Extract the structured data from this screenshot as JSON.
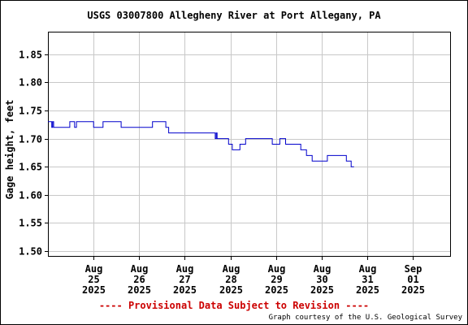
{
  "chart_data": {
    "type": "line",
    "title": "USGS 03007800 Allegheny River at Port Allegany, PA",
    "ylabel": "Gage height, feet",
    "xlabel": "",
    "ylim": [
      1.49,
      1.89
    ],
    "yticks": [
      1.5,
      1.55,
      1.6,
      1.65,
      1.7,
      1.75,
      1.8,
      1.85
    ],
    "ytick_labels": [
      "1.50",
      "1.55",
      "1.60",
      "1.65",
      "1.70",
      "1.75",
      "1.80",
      "1.85"
    ],
    "xlim": [
      "2025-08-24 00:00",
      "2025-09-01 20:00"
    ],
    "xticks": [
      {
        "date": "2025-08-25",
        "lines": [
          "Aug",
          "25",
          "2025"
        ]
      },
      {
        "date": "2025-08-26",
        "lines": [
          "Aug",
          "26",
          "2025"
        ]
      },
      {
        "date": "2025-08-27",
        "lines": [
          "Aug",
          "27",
          "2025"
        ]
      },
      {
        "date": "2025-08-28",
        "lines": [
          "Aug",
          "28",
          "2025"
        ]
      },
      {
        "date": "2025-08-29",
        "lines": [
          "Aug",
          "29",
          "2025"
        ]
      },
      {
        "date": "2025-08-30",
        "lines": [
          "Aug",
          "30",
          "2025"
        ]
      },
      {
        "date": "2025-08-31",
        "lines": [
          "Aug",
          "31",
          "2025"
        ]
      },
      {
        "date": "2025-09-01",
        "lines": [
          "Sep",
          "01",
          "2025"
        ]
      }
    ],
    "grid": true,
    "series": [
      {
        "color": "#0000cc",
        "points": [
          [
            "2025-08-24 00:00",
            1.73
          ],
          [
            "2025-08-24 02:00",
            1.73
          ],
          [
            "2025-08-24 02:00",
            1.72
          ],
          [
            "2025-08-24 02:30",
            1.72
          ],
          [
            "2025-08-24 02:30",
            1.73
          ],
          [
            "2025-08-24 03:00",
            1.73
          ],
          [
            "2025-08-24 03:00",
            1.72
          ],
          [
            "2025-08-24 11:30",
            1.72
          ],
          [
            "2025-08-24 11:30",
            1.73
          ],
          [
            "2025-08-24 14:00",
            1.73
          ],
          [
            "2025-08-24 14:00",
            1.72
          ],
          [
            "2025-08-24 15:00",
            1.72
          ],
          [
            "2025-08-24 15:00",
            1.73
          ],
          [
            "2025-08-25 00:00",
            1.73
          ],
          [
            "2025-08-25 00:00",
            1.72
          ],
          [
            "2025-08-25 05:00",
            1.72
          ],
          [
            "2025-08-25 05:00",
            1.73
          ],
          [
            "2025-08-25 14:30",
            1.73
          ],
          [
            "2025-08-25 14:30",
            1.72
          ],
          [
            "2025-08-26 07:00",
            1.72
          ],
          [
            "2025-08-26 07:00",
            1.73
          ],
          [
            "2025-08-26 14:00",
            1.73
          ],
          [
            "2025-08-26 14:00",
            1.72
          ],
          [
            "2025-08-26 15:30",
            1.72
          ],
          [
            "2025-08-26 15:30",
            1.71
          ],
          [
            "2025-08-27 16:00",
            1.71
          ],
          [
            "2025-08-27 16:00",
            1.7
          ],
          [
            "2025-08-27 16:30",
            1.7
          ],
          [
            "2025-08-27 16:30",
            1.71
          ],
          [
            "2025-08-27 17:00",
            1.71
          ],
          [
            "2025-08-27 17:00",
            1.7
          ],
          [
            "2025-08-27 23:00",
            1.7
          ],
          [
            "2025-08-27 23:00",
            1.69
          ],
          [
            "2025-08-28 01:00",
            1.69
          ],
          [
            "2025-08-28 01:00",
            1.68
          ],
          [
            "2025-08-28 05:00",
            1.68
          ],
          [
            "2025-08-28 05:00",
            1.69
          ],
          [
            "2025-08-28 08:00",
            1.69
          ],
          [
            "2025-08-28 08:00",
            1.7
          ],
          [
            "2025-08-28 22:00",
            1.7
          ],
          [
            "2025-08-28 22:00",
            1.69
          ],
          [
            "2025-08-29 02:00",
            1.69
          ],
          [
            "2025-08-29 02:00",
            1.7
          ],
          [
            "2025-08-29 05:00",
            1.7
          ],
          [
            "2025-08-29 05:00",
            1.69
          ],
          [
            "2025-08-29 13:00",
            1.69
          ],
          [
            "2025-08-29 13:00",
            1.68
          ],
          [
            "2025-08-29 16:00",
            1.68
          ],
          [
            "2025-08-29 16:00",
            1.67
          ],
          [
            "2025-08-29 19:00",
            1.67
          ],
          [
            "2025-08-29 19:00",
            1.66
          ],
          [
            "2025-08-30 03:00",
            1.66
          ],
          [
            "2025-08-30 03:00",
            1.67
          ],
          [
            "2025-08-30 13:00",
            1.67
          ],
          [
            "2025-08-30 13:00",
            1.66
          ],
          [
            "2025-08-30 15:30",
            1.66
          ],
          [
            "2025-08-30 15:30",
            1.65
          ],
          [
            "2025-08-30 17:00",
            1.65
          ]
        ]
      }
    ]
  },
  "footer": {
    "provisional": "---- Provisional Data Subject to Revision ----",
    "credit": "Graph courtesy of the U.S. Geological Survey"
  },
  "colors": {
    "line": "#0000cc",
    "grid": "#c8c8c8",
    "warning": "#cc0000"
  }
}
